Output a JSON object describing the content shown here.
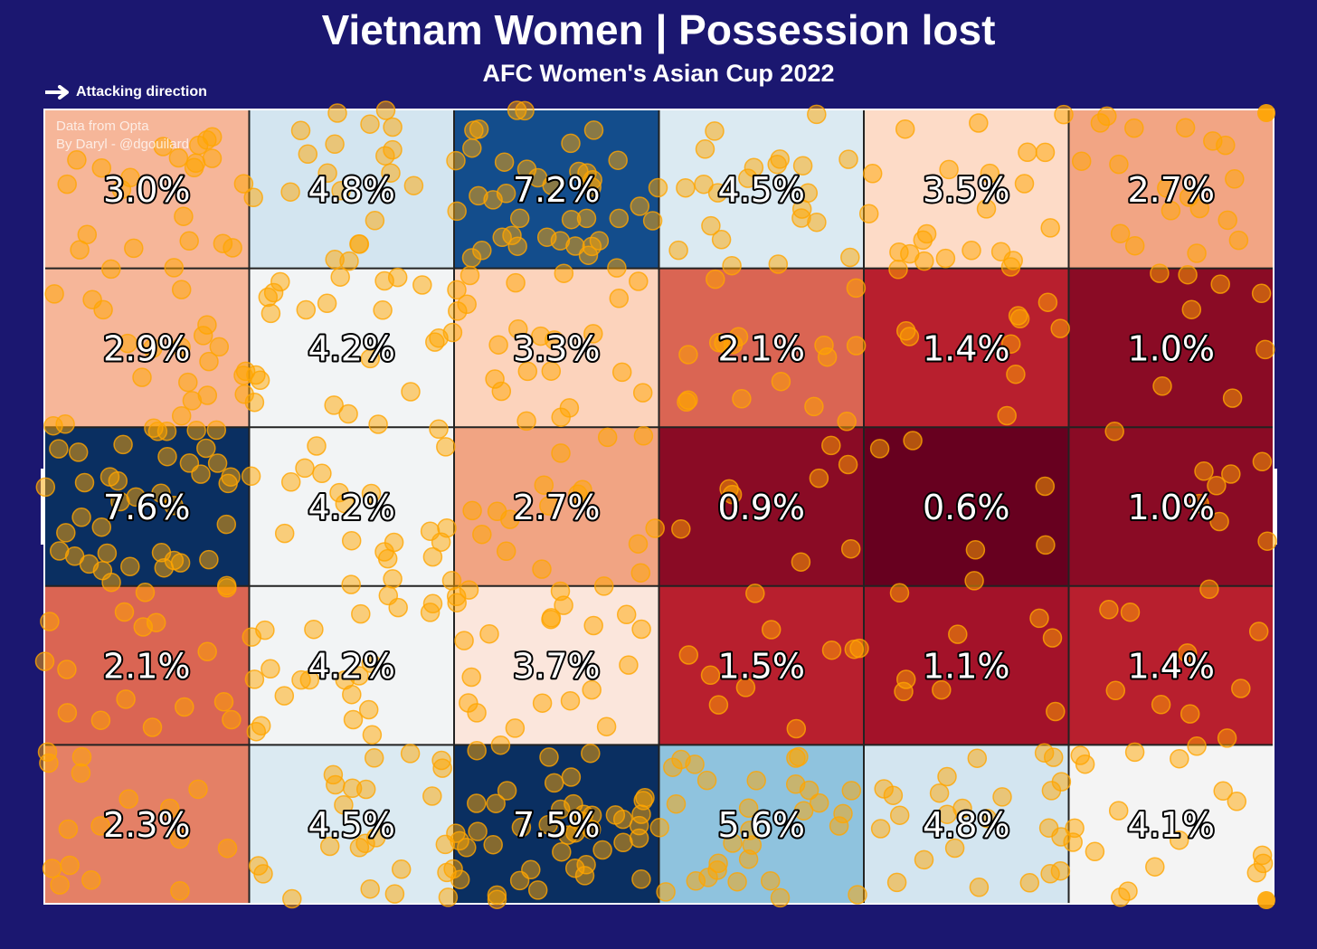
{
  "title": "Vietnam Women | Possession lost",
  "subtitle": "AFC Women's Asian Cup 2022",
  "legend": {
    "arrow_icon": "right-arrow-icon",
    "label": "Attacking direction"
  },
  "credits": {
    "line1": "Data from Opta",
    "line2": "By Daryl - @dgouilard"
  },
  "colors": {
    "background": "#1b1770",
    "point": "#ffa500",
    "label_text": "#ffffff",
    "label_outline": "#000000"
  },
  "chart_data": {
    "type": "heatmap",
    "title": "Vietnam Women | Possession lost",
    "subtitle": "AFC Women's Asian Cup 2022",
    "rows": 5,
    "cols": 6,
    "cell_labels": [
      [
        "3.0%",
        "4.8%",
        "7.2%",
        "4.5%",
        "3.5%",
        "2.7%"
      ],
      [
        "2.9%",
        "4.2%",
        "3.3%",
        "2.1%",
        "1.4%",
        "1.0%"
      ],
      [
        "7.6%",
        "4.2%",
        "2.7%",
        "0.9%",
        "0.6%",
        "1.0%"
      ],
      [
        "2.1%",
        "4.2%",
        "3.7%",
        "1.5%",
        "1.1%",
        "1.4%"
      ],
      [
        "2.3%",
        "4.5%",
        "7.5%",
        "5.6%",
        "4.8%",
        "4.1%"
      ]
    ],
    "values": [
      [
        3.0,
        4.8,
        7.2,
        4.5,
        3.5,
        2.7
      ],
      [
        2.9,
        4.2,
        3.3,
        2.1,
        1.4,
        1.0
      ],
      [
        7.6,
        4.2,
        2.7,
        0.9,
        0.6,
        1.0
      ],
      [
        2.1,
        4.2,
        3.7,
        1.5,
        1.1,
        1.4
      ],
      [
        2.3,
        4.5,
        7.5,
        5.6,
        4.8,
        4.1
      ]
    ],
    "cell_colors": [
      [
        "#f6b699",
        "#d3e5f0",
        "#134d8c",
        "#dbeaf2",
        "#fddbc7",
        "#f2a584"
      ],
      [
        "#f6b699",
        "#f2f4f5",
        "#fcd3bc",
        "#da6553",
        "#b81f2e",
        "#8a0b25"
      ],
      [
        "#0a2f61",
        "#f2f4f5",
        "#f1a483",
        "#8a0b25",
        "#67001f",
        "#8a0b25"
      ],
      [
        "#da6553",
        "#f2f4f5",
        "#fbe6dc",
        "#b81f2e",
        "#a31229",
        "#b81f2e"
      ],
      [
        "#e48066",
        "#dbeaf2",
        "#0a2f61",
        "#8fc3de",
        "#d3e5f0",
        "#f4f4f4"
      ]
    ],
    "colormap": "RdBu",
    "grid": true,
    "scatter_series": {
      "name": "",
      "color": "#ffa500",
      "points_per_cell": [
        [
          22,
          20,
          40,
          22,
          22,
          18
        ],
        [
          22,
          22,
          22,
          16,
          10,
          8
        ],
        [
          40,
          22,
          16,
          8,
          6,
          8
        ],
        [
          16,
          22,
          22,
          10,
          8,
          10
        ],
        [
          16,
          24,
          44,
          30,
          24,
          18
        ]
      ]
    }
  }
}
